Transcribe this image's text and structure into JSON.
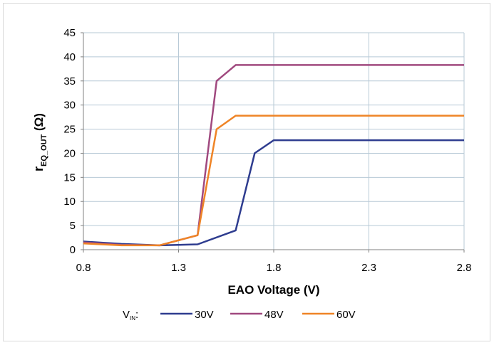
{
  "chart_data": {
    "type": "line",
    "xlabel": "EAO Voltage (V)",
    "ylabel": {
      "main": "r",
      "sub": "EQ_OUT",
      "unit": " (Ω)"
    },
    "x_ticks": [
      "0.8",
      "1.3",
      "1.8",
      "2.3",
      "2.8"
    ],
    "y_ticks": [
      "0",
      "5",
      "10",
      "15",
      "20",
      "25",
      "30",
      "35",
      "40",
      "45"
    ],
    "xlim": [
      0.8,
      2.8
    ],
    "ylim": [
      0,
      45
    ],
    "grid": true,
    "legend": {
      "position": "bottom",
      "label_main": "V",
      "label_sub": "IN",
      "label_suffix": ":"
    },
    "series": [
      {
        "name": "30V",
        "color": "#2e3c8f",
        "x": [
          0.8,
          1.0,
          1.2,
          1.4,
          1.6,
          1.7,
          1.8,
          2.8
        ],
        "y": [
          1.7,
          1.2,
          0.9,
          1.1,
          4.0,
          20.0,
          22.7,
          22.7
        ]
      },
      {
        "name": "48V",
        "color": "#a0497f",
        "x": [
          0.8,
          1.0,
          1.2,
          1.4,
          1.5,
          1.6,
          2.8
        ],
        "y": [
          1.5,
          1.0,
          0.9,
          3.0,
          35.0,
          38.3,
          38.3
        ]
      },
      {
        "name": "60V",
        "color": "#ef8426",
        "x": [
          0.8,
          1.0,
          1.2,
          1.4,
          1.5,
          1.6,
          2.8
        ],
        "y": [
          1.3,
          0.9,
          0.9,
          3.0,
          25.0,
          27.8,
          27.8
        ]
      }
    ]
  }
}
